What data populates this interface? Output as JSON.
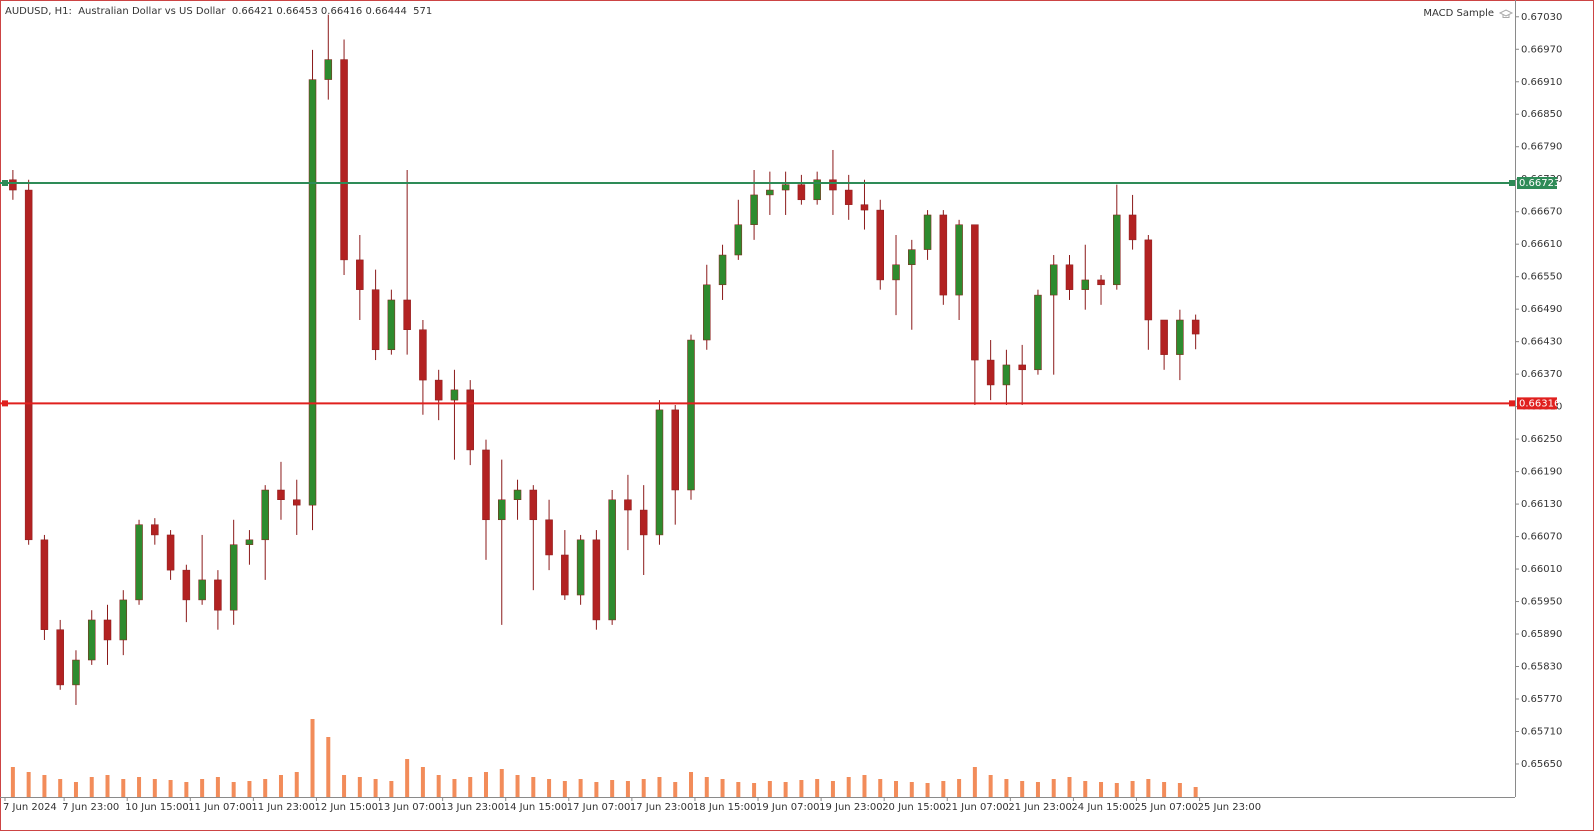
{
  "chart_data": {
    "type": "candlestick",
    "title": "AUDUSD, H1:  Australian Dollar vs US Dollar  0.66421 0.66453 0.66416 0.66444  571",
    "indicator": "MACD Sample",
    "bull_color": "#2e8b2e",
    "bear_color": "#b22222",
    "wick_color": "#8b1a1a",
    "volume_color": "#f28c5a",
    "xlim": [
      0,
      383
    ],
    "ylim": [
      0.65589,
      0.67061
    ],
    "xticks": [
      {
        "value": 0,
        "label": "7 Jun 2024"
      },
      {
        "value": 15,
        "label": "7 Jun 23:00"
      },
      {
        "value": 31,
        "label": "10 Jun 15:00"
      },
      {
        "value": 47,
        "label": "11 Jun 07:00"
      },
      {
        "value": 63,
        "label": "11 Jun 23:00"
      },
      {
        "value": 79,
        "label": "12 Jun 15:00"
      },
      {
        "value": 95,
        "label": "13 Jun 07:00"
      },
      {
        "value": 111,
        "label": "13 Jun 23:00"
      },
      {
        "value": 127,
        "label": "14 Jun 15:00"
      },
      {
        "value": 143,
        "label": "17 Jun 07:00"
      },
      {
        "value": 159,
        "label": "17 Jun 23:00"
      },
      {
        "value": 175,
        "label": "18 Jun 15:00"
      },
      {
        "value": 191,
        "label": "19 Jun 07:00"
      },
      {
        "value": 207,
        "label": "19 Jun 23:00"
      },
      {
        "value": 223,
        "label": "20 Jun 15:00"
      },
      {
        "value": 239,
        "label": "21 Jun 07:00"
      },
      {
        "value": 255,
        "label": "21 Jun 23:00"
      },
      {
        "value": 271,
        "label": "24 Jun 15:00"
      },
      {
        "value": 287,
        "label": "25 Jun 07:00"
      },
      {
        "value": 303,
        "label": "25 Jun 23:00"
      }
    ],
    "yticks": [
      {
        "value": 0.6703,
        "label": "0.67030"
      },
      {
        "value": 0.6697,
        "label": "0.66970"
      },
      {
        "value": 0.6691,
        "label": "0.66910"
      },
      {
        "value": 0.6685,
        "label": "0.66850"
      },
      {
        "value": 0.6679,
        "label": "0.66790"
      },
      {
        "value": 0.6673,
        "label": "0.66730"
      },
      {
        "value": 0.6667,
        "label": "0.66670"
      },
      {
        "value": 0.6661,
        "label": "0.66610"
      },
      {
        "value": 0.6655,
        "label": "0.66550"
      },
      {
        "value": 0.6649,
        "label": "0.66490"
      },
      {
        "value": 0.6643,
        "label": "0.66430"
      },
      {
        "value": 0.6637,
        "label": "0.66370"
      },
      {
        "value": 0.6631,
        "label": "0.66310"
      },
      {
        "value": 0.6625,
        "label": "0.66250"
      },
      {
        "value": 0.6619,
        "label": "0.66190"
      },
      {
        "value": 0.6613,
        "label": "0.66130"
      },
      {
        "value": 0.6607,
        "label": "0.66070"
      },
      {
        "value": 0.6601,
        "label": "0.66010"
      },
      {
        "value": 0.6595,
        "label": "0.65950"
      },
      {
        "value": 0.6589,
        "label": "0.65890"
      },
      {
        "value": 0.6583,
        "label": "0.65830"
      },
      {
        "value": 0.6577,
        "label": "0.65770"
      },
      {
        "value": 0.6571,
        "label": "0.65710"
      },
      {
        "value": 0.6565,
        "label": "0.65650"
      }
    ],
    "hlines": [
      {
        "value": 0.66723,
        "color": "#2e8b57"
      },
      {
        "value": 0.66316,
        "color": "#e0201e"
      }
    ],
    "x": [
      0,
      4,
      8,
      12,
      16,
      20,
      24,
      28,
      32,
      36,
      40,
      44,
      48,
      52,
      56,
      60,
      64,
      68,
      72,
      76,
      80,
      84,
      88,
      92,
      96,
      100,
      104,
      108,
      112,
      116,
      120,
      124,
      128,
      132,
      136,
      140,
      144,
      148,
      152,
      156,
      160,
      164,
      168,
      172,
      176,
      180,
      184,
      188,
      192,
      196,
      200,
      204,
      208,
      212,
      216,
      220,
      224,
      228,
      232,
      236,
      240,
      244,
      248,
      252,
      256,
      260,
      264,
      268,
      272,
      276,
      280,
      284,
      288,
      292,
      296,
      300
    ],
    "candles": [
      [
        0.66729,
        0.66747,
        0.66692,
        0.6671
      ],
      [
        0.6671,
        0.66729,
        0.66055,
        0.66064
      ],
      [
        0.66064,
        0.66073,
        0.65879,
        0.65898
      ],
      [
        0.65898,
        0.65916,
        0.65787,
        0.65796
      ],
      [
        0.65796,
        0.6586,
        0.65759,
        0.65842
      ],
      [
        0.65842,
        0.65934,
        0.65833,
        0.65916
      ],
      [
        0.65916,
        0.65944,
        0.65833,
        0.65879
      ],
      [
        0.65879,
        0.65971,
        0.65851,
        0.65953
      ],
      [
        0.65953,
        0.66101,
        0.65944,
        0.66092
      ],
      [
        0.66092,
        0.66104,
        0.66055,
        0.66073
      ],
      [
        0.66073,
        0.66082,
        0.6599,
        0.66008
      ],
      [
        0.66008,
        0.66018,
        0.65912,
        0.65953
      ],
      [
        0.65953,
        0.66073,
        0.65944,
        0.6599
      ],
      [
        0.6599,
        0.66008,
        0.65898,
        0.65934
      ],
      [
        0.65934,
        0.66101,
        0.65907,
        0.66055
      ],
      [
        0.66055,
        0.66082,
        0.66018,
        0.66064
      ],
      [
        0.66064,
        0.66165,
        0.6599,
        0.66156
      ],
      [
        0.66156,
        0.66208,
        0.66101,
        0.66138
      ],
      [
        0.66138,
        0.66175,
        0.66073,
        0.66128
      ],
      [
        0.66128,
        0.66969,
        0.66082,
        0.66914
      ],
      [
        0.66914,
        0.67034,
        0.66877,
        0.66951
      ],
      [
        0.66951,
        0.66988,
        0.66553,
        0.66581
      ],
      [
        0.66581,
        0.66627,
        0.6647,
        0.66526
      ],
      [
        0.66526,
        0.66563,
        0.66396,
        0.66415
      ],
      [
        0.66415,
        0.66526,
        0.66406,
        0.66507
      ],
      [
        0.66507,
        0.66747,
        0.66406,
        0.66452
      ],
      [
        0.66452,
        0.6647,
        0.66295,
        0.66359
      ],
      [
        0.66359,
        0.66378,
        0.66285,
        0.66322
      ],
      [
        0.66322,
        0.66378,
        0.66212,
        0.66341
      ],
      [
        0.66341,
        0.66359,
        0.66202,
        0.6623
      ],
      [
        0.6623,
        0.66249,
        0.66027,
        0.66101
      ],
      [
        0.66101,
        0.66212,
        0.65907,
        0.66138
      ],
      [
        0.66138,
        0.66175,
        0.66101,
        0.66156
      ],
      [
        0.66156,
        0.66165,
        0.65971,
        0.66101
      ],
      [
        0.66101,
        0.66138,
        0.66008,
        0.66036
      ],
      [
        0.66036,
        0.66082,
        0.65953,
        0.65962
      ],
      [
        0.65962,
        0.66073,
        0.65944,
        0.66064
      ],
      [
        0.66064,
        0.66082,
        0.65898,
        0.65916
      ],
      [
        0.65916,
        0.66156,
        0.65907,
        0.66138
      ],
      [
        0.66138,
        0.66184,
        0.66045,
        0.66119
      ],
      [
        0.66119,
        0.66165,
        0.65999,
        0.66073
      ],
      [
        0.66073,
        0.66322,
        0.66055,
        0.66304
      ],
      [
        0.66304,
        0.66313,
        0.66092,
        0.66156
      ],
      [
        0.66156,
        0.66443,
        0.66138,
        0.66433
      ],
      [
        0.66433,
        0.66572,
        0.66415,
        0.66535
      ],
      [
        0.66535,
        0.66609,
        0.66507,
        0.6659
      ],
      [
        0.6659,
        0.66692,
        0.66581,
        0.66646
      ],
      [
        0.66646,
        0.66747,
        0.66618,
        0.66701
      ],
      [
        0.66701,
        0.66744,
        0.66664,
        0.6671
      ],
      [
        0.6671,
        0.66744,
        0.66664,
        0.6672
      ],
      [
        0.6672,
        0.66738,
        0.66683,
        0.66692
      ],
      [
        0.66692,
        0.66744,
        0.66683,
        0.66729
      ],
      [
        0.66729,
        0.66784,
        0.66664,
        0.6671
      ],
      [
        0.6671,
        0.66738,
        0.66655,
        0.66683
      ],
      [
        0.66683,
        0.66729,
        0.66637,
        0.66673
      ],
      [
        0.66673,
        0.66692,
        0.66526,
        0.66544
      ],
      [
        0.66544,
        0.66627,
        0.66479,
        0.66572
      ],
      [
        0.66572,
        0.66618,
        0.66452,
        0.666
      ],
      [
        0.666,
        0.66673,
        0.66581,
        0.66664
      ],
      [
        0.66664,
        0.66673,
        0.66498,
        0.66516
      ],
      [
        0.66516,
        0.66655,
        0.6647,
        0.66646
      ],
      [
        0.66646,
        0.66646,
        0.66313,
        0.66396
      ],
      [
        0.66396,
        0.66433,
        0.66322,
        0.6635
      ],
      [
        0.6635,
        0.66415,
        0.66313,
        0.66387
      ],
      [
        0.66387,
        0.66424,
        0.66313,
        0.66378
      ],
      [
        0.66378,
        0.66526,
        0.66369,
        0.66516
      ],
      [
        0.66516,
        0.6659,
        0.66369,
        0.66572
      ],
      [
        0.66572,
        0.6659,
        0.66507,
        0.66526
      ],
      [
        0.66526,
        0.66609,
        0.66489,
        0.66544
      ],
      [
        0.66544,
        0.66553,
        0.66498,
        0.66535
      ],
      [
        0.66535,
        0.6672,
        0.66526,
        0.66664
      ],
      [
        0.66664,
        0.66701,
        0.666,
        0.66618
      ],
      [
        0.66618,
        0.66627,
        0.66415,
        0.6647
      ],
      [
        0.6647,
        0.6647,
        0.66378,
        0.66406
      ],
      [
        0.66406,
        0.66489,
        0.66359,
        0.6647
      ],
      [
        0.6647,
        0.6648,
        0.66416,
        0.66444
      ]
    ],
    "volumes": [
      30,
      25,
      22,
      18,
      15,
      20,
      22,
      18,
      20,
      18,
      17,
      15,
      18,
      20,
      15,
      16,
      18,
      22,
      25,
      78,
      60,
      22,
      20,
      18,
      16,
      38,
      30,
      22,
      18,
      20,
      25,
      28,
      22,
      20,
      18,
      16,
      18,
      15,
      17,
      16,
      18,
      20,
      15,
      25,
      20,
      18,
      15,
      14,
      16,
      15,
      17,
      18,
      16,
      20,
      22,
      18,
      16,
      15,
      14,
      16,
      18,
      30,
      22,
      18,
      16,
      15,
      18,
      20,
      16,
      15,
      14,
      16,
      18,
      15,
      14,
      10
    ]
  }
}
